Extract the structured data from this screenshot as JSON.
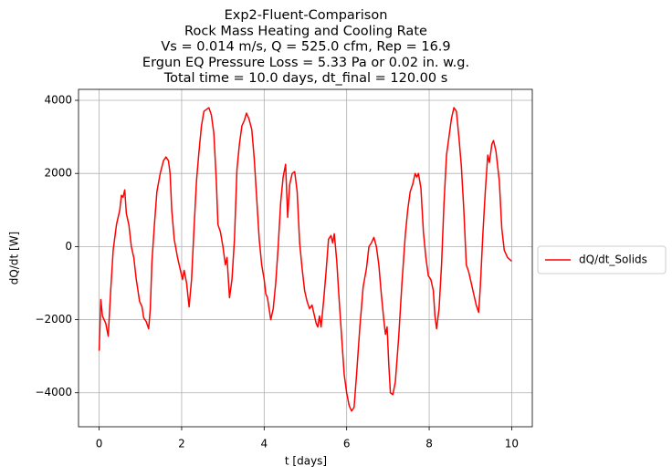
{
  "chart_data": {
    "type": "line",
    "title_lines": [
      "Exp2-Fluent-Comparison",
      "Rock Mass Heating and Cooling Rate",
      "Vs = 0.014 m/s, Q = 525.0 cfm, Rep = 16.9",
      "Ergun EQ Pressure Loss = 5.33 Pa or 0.02 in. w.g.",
      "Total time = 10.0 days, dt_final = 120.00 s"
    ],
    "x_label": "t [days]",
    "y_label": "dQ/dt [W]",
    "x": [
      0,
      0.04,
      0.08,
      0.16,
      0.22,
      0.28,
      0.34,
      0.42,
      0.5,
      0.54,
      0.58,
      0.62,
      0.66,
      0.72,
      0.78,
      0.84,
      0.9,
      0.98,
      1.04,
      1.08,
      1.14,
      1.2,
      1.24,
      1.28,
      1.34,
      1.4,
      1.48,
      1.56,
      1.62,
      1.68,
      1.72,
      1.76,
      1.82,
      1.9,
      1.96,
      2.02,
      2.06,
      2.12,
      2.18,
      2.24,
      2.3,
      2.36,
      2.42,
      2.48,
      2.54,
      2.6,
      2.66,
      2.72,
      2.78,
      2.84,
      2.88,
      2.94,
      3.0,
      3.06,
      3.1,
      3.16,
      3.22,
      3.28,
      3.34,
      3.4,
      3.46,
      3.52,
      3.57,
      3.63,
      3.7,
      3.76,
      3.82,
      3.88,
      3.94,
      4.0,
      4.04,
      4.08,
      4.12,
      4.16,
      4.22,
      4.28,
      4.34,
      4.4,
      4.46,
      4.52,
      4.57,
      4.62,
      4.68,
      4.74,
      4.8,
      4.86,
      4.92,
      4.98,
      5.04,
      5.1,
      5.16,
      5.2,
      5.26,
      5.3,
      5.34,
      5.38,
      5.44,
      5.5,
      5.56,
      5.62,
      5.66,
      5.7,
      5.76,
      5.82,
      5.88,
      5.94,
      6.0,
      6.06,
      6.12,
      6.18,
      6.24,
      6.32,
      6.4,
      6.48,
      6.54,
      6.6,
      6.66,
      6.72,
      6.78,
      6.84,
      6.9,
      6.94,
      6.98,
      7.02,
      7.06,
      7.12,
      7.18,
      7.26,
      7.34,
      7.42,
      7.48,
      7.54,
      7.6,
      7.66,
      7.7,
      7.74,
      7.8,
      7.86,
      7.92,
      7.98,
      8.04,
      8.1,
      8.14,
      8.18,
      8.24,
      8.3,
      8.36,
      8.42,
      8.48,
      8.54,
      8.6,
      8.66,
      8.72,
      8.78,
      8.84,
      8.9,
      8.96,
      9.02,
      9.08,
      9.14,
      9.2,
      9.24,
      9.3,
      9.36,
      9.42,
      9.46,
      9.52,
      9.56,
      9.62,
      9.7,
      9.76,
      9.82,
      9.9,
      10.0
    ],
    "series": [
      {
        "name": "dQ/dt_Solids",
        "color": "#ff0000",
        "values": [
          -2850,
          -1450,
          -1900,
          -2100,
          -2450,
          -1200,
          -100,
          600,
          1000,
          1400,
          1350,
          1550,
          900,
          600,
          0,
          -300,
          -900,
          -1500,
          -1650,
          -1950,
          -2050,
          -2250,
          -1700,
          -400,
          600,
          1500,
          2000,
          2350,
          2450,
          2350,
          2000,
          1000,
          200,
          -300,
          -600,
          -900,
          -650,
          -1000,
          -1650,
          -900,
          500,
          1800,
          2600,
          3300,
          3700,
          3750,
          3800,
          3600,
          3100,
          1800,
          600,
          400,
          0,
          -500,
          -300,
          -1400,
          -900,
          200,
          2100,
          2800,
          3300,
          3450,
          3650,
          3500,
          3200,
          2400,
          1300,
          200,
          -500,
          -900,
          -1300,
          -1400,
          -1700,
          -2000,
          -1700,
          -1000,
          0,
          1200,
          1900,
          2250,
          800,
          1700,
          2000,
          2050,
          1500,
          100,
          -600,
          -1200,
          -1500,
          -1700,
          -1600,
          -1800,
          -2100,
          -2200,
          -1900,
          -2200,
          -1500,
          -700,
          200,
          300,
          100,
          350,
          -400,
          -1500,
          -2500,
          -3500,
          -4000,
          -4350,
          -4500,
          -4400,
          -3500,
          -2200,
          -1100,
          -600,
          0,
          100,
          250,
          0,
          -500,
          -1300,
          -2000,
          -2400,
          -2200,
          -3200,
          -4000,
          -4050,
          -3700,
          -2500,
          -1000,
          300,
          1000,
          1500,
          1700,
          2000,
          1900,
          2000,
          1600,
          400,
          -300,
          -800,
          -900,
          -1200,
          -1900,
          -2250,
          -1700,
          -500,
          1200,
          2500,
          3000,
          3500,
          3800,
          3700,
          3000,
          2200,
          1000,
          -500,
          -700,
          -1000,
          -1300,
          -1600,
          -1800,
          -1100,
          300,
          1500,
          2500,
          2300,
          2800,
          2900,
          2600,
          1800,
          500,
          -100,
          -300,
          -400
        ]
      }
    ],
    "xlim": [
      -0.5,
      10.5
    ],
    "xticks": [
      0,
      2,
      4,
      6,
      8,
      10
    ],
    "ylim": [
      -4930,
      4300
    ],
    "yticks": [
      {
        "value": -4000,
        "label": "−4000"
      },
      {
        "value": -2000,
        "label": "−2000"
      },
      0,
      2000,
      4000
    ],
    "grid": true,
    "legend": "outside-right"
  }
}
